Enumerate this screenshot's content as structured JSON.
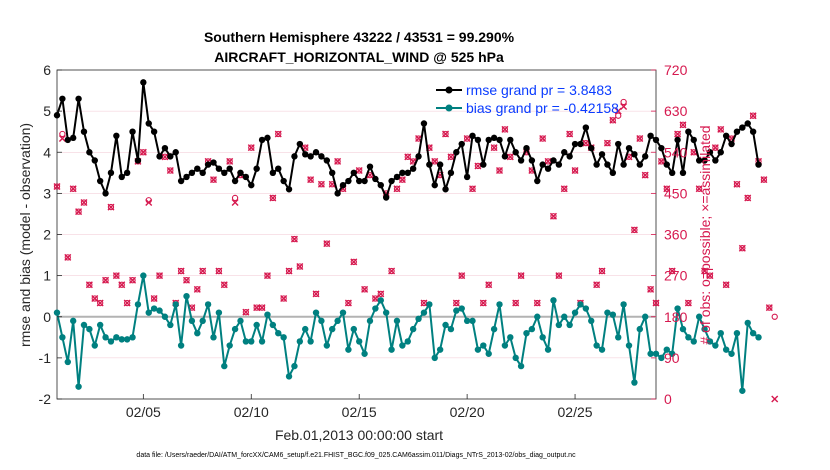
{
  "colors": {
    "rmse": "#000000",
    "bias": "#008080",
    "obs": "#d6194f",
    "zero_line": "#b3b3b3",
    "grid": "#f2c6d1",
    "legend_text": "#0a3cff"
  },
  "chart_data": {
    "type": "line",
    "title_line1": "Southern Hemisphere 43222 / 43531 = 99.290%",
    "title_line2": "AIRCRAFT_HORIZONTAL_WIND @ 525 hPa",
    "xlabel": "Feb.01,2013 00:00:00 start",
    "ylabel_left": "rmse and bias (model - observation)",
    "ylabel_right": "# of obs: o=possible; ×=assimilated",
    "footnote": "data file: /Users/raeder/DAI/ATM_forcXX/CAM6_setup/f.e21.FHIST_BGC.f09_025.CAM6assim.011/Diags_NTrS_2013-02/obs_diag_output.nc",
    "x_range_days": [
      1,
      28.75
    ],
    "x_ticks": [
      {
        "day": 5,
        "label": "02/05"
      },
      {
        "day": 10,
        "label": "02/10"
      },
      {
        "day": 15,
        "label": "02/15"
      },
      {
        "day": 20,
        "label": "02/20"
      },
      {
        "day": 25,
        "label": "02/25"
      }
    ],
    "ylim_left": [
      -2,
      6
    ],
    "yticks_left": [
      -2,
      -1,
      0,
      1,
      2,
      3,
      4,
      5,
      6
    ],
    "ylim_right": [
      0,
      720
    ],
    "yticks_right": [
      0,
      90,
      180,
      270,
      360,
      450,
      540,
      630,
      720
    ],
    "legend": [
      {
        "text": "rmse grand pr = 3.8483",
        "series": "rmse"
      },
      {
        "text": "bias grand pr = -0.42158",
        "series": "bias"
      }
    ],
    "x_start": 1,
    "x_step": 0.25,
    "series": [
      {
        "name": "rmse",
        "axis": "left",
        "values": [
          4.9,
          5.3,
          4.3,
          4.35,
          5.3,
          4.5,
          4.0,
          3.8,
          3.3,
          3.0,
          3.5,
          4.4,
          3.4,
          3.5,
          4.5,
          3.8,
          5.7,
          4.7,
          4.5,
          3.9,
          4.1,
          3.9,
          4.0,
          3.3,
          3.4,
          3.5,
          3.6,
          3.5,
          3.7,
          3.75,
          3.6,
          3.5,
          3.6,
          3.3,
          3.5,
          3.4,
          3.2,
          3.6,
          4.3,
          4.35,
          3.5,
          3.6,
          3.3,
          3.1,
          3.9,
          4.2,
          3.95,
          3.9,
          4.0,
          3.9,
          3.8,
          3.5,
          3.0,
          3.2,
          3.3,
          3.5,
          3.3,
          3.3,
          3.65,
          3.35,
          3.2,
          2.9,
          3.3,
          3.4,
          3.5,
          3.5,
          3.6,
          3.9,
          4.7,
          3.7,
          3.2,
          3.7,
          3.1,
          3.5,
          4.0,
          4.2,
          3.4,
          4.4,
          4.3,
          3.7,
          4.3,
          4.35,
          4.3,
          3.9,
          4.3,
          4.0,
          3.8,
          4.1,
          3.8,
          3.3,
          3.7,
          3.6,
          3.8,
          3.7,
          4.0,
          3.9,
          4.2,
          4.2,
          4.6,
          4.1,
          3.7,
          3.95,
          3.7,
          3.5,
          4.2,
          3.7,
          4.1,
          3.95,
          3.7,
          3.9,
          4.4,
          4.3,
          4.1,
          3.7,
          3.5,
          4.3,
          3.5,
          4.5,
          4.3,
          3.8,
          3.8,
          4.0,
          3.8,
          4.0,
          4.4,
          4.2,
          4.5,
          4.6,
          4.7,
          4.5,
          3.7
        ]
      },
      {
        "name": "bias",
        "axis": "left",
        "values": [
          0.1,
          -0.5,
          -1.1,
          -0.1,
          -1.7,
          -0.2,
          -0.3,
          -0.7,
          -0.2,
          -0.5,
          -0.6,
          -0.5,
          -0.55,
          -0.55,
          -0.5,
          0.3,
          1.0,
          0.1,
          0.2,
          0.15,
          0.0,
          -0.2,
          0.3,
          -0.7,
          0.5,
          -0.1,
          -0.4,
          -0.1,
          0.3,
          -0.5,
          0.1,
          -1.2,
          -0.7,
          -0.3,
          -0.1,
          -0.6,
          -0.6,
          -0.2,
          -0.6,
          0.05,
          -0.2,
          -0.4,
          -0.5,
          -1.45,
          -1.2,
          -0.6,
          -0.3,
          -0.6,
          0.1,
          -0.1,
          -0.7,
          -0.3,
          -0.1,
          0.1,
          -0.8,
          -0.3,
          -0.6,
          -0.9,
          -0.1,
          0.2,
          0.4,
          0.1,
          -0.8,
          -0.1,
          -0.7,
          -0.6,
          -0.3,
          -0.05,
          0.1,
          0.3,
          -1.0,
          -0.8,
          -0.2,
          -0.3,
          0.15,
          0.2,
          -0.1,
          -0.1,
          -0.8,
          -0.7,
          -0.9,
          -0.3,
          0.3,
          -0.7,
          -0.5,
          -1.0,
          -1.2,
          -0.4,
          -0.3,
          0.0,
          -0.5,
          -0.8,
          0.4,
          -0.2,
          0.0,
          -0.2,
          0.1,
          0.3,
          0.2,
          -0.1,
          -0.7,
          -0.8,
          0.1,
          0.05,
          -0.5,
          0.3,
          -0.7,
          -1.6,
          -0.3,
          0.0,
          -0.9,
          -0.9,
          -1.0,
          -0.8,
          -0.9,
          0.2,
          -0.3,
          -0.5,
          -0.6,
          0.0,
          -0.3,
          -0.6,
          -0.7,
          -0.4,
          -0.8,
          -0.9,
          -0.4,
          -1.8,
          -0.15,
          -0.4,
          -0.5
        ]
      },
      {
        "name": "obs_possible",
        "axis": "right",
        "values": [
          465,
          580,
          310,
          460,
          410,
          430,
          250,
          220,
          210,
          260,
          420,
          270,
          250,
          210,
          260,
          520,
          540,
          435,
          220,
          270,
          530,
          500,
          210,
          280,
          260,
          200,
          240,
          280,
          520,
          480,
          280,
          250,
          520,
          440,
          490,
          190,
          550,
          200,
          200,
          270,
          440,
          580,
          220,
          280,
          350,
          290,
          550,
          480,
          230,
          470,
          340,
          470,
          520,
          460,
          210,
          300,
          500,
          240,
          490,
          220,
          230,
          450,
          280,
          460,
          480,
          530,
          520,
          570,
          210,
          550,
          520,
          490,
          580,
          530,
          210,
          270,
          570,
          460,
          510,
          210,
          250,
          550,
          500,
          590,
          530,
          210,
          270,
          540,
          500,
          210,
          570,
          520,
          400,
          270,
          460,
          580,
          500,
          210,
          560,
          550,
          250,
          280,
          560,
          610,
          620,
          650,
          530,
          370,
          570,
          490,
          240,
          210,
          520,
          460,
          280,
          580,
          600,
          210,
          540,
          460,
          280,
          270,
          550,
          590,
          250,
          570,
          470,
          330,
          440,
          620,
          520,
          480,
          200,
          180
        ]
      },
      {
        "name": "obs_assimilated",
        "axis": "right",
        "values": [
          465,
          570,
          310,
          460,
          410,
          430,
          250,
          220,
          210,
          260,
          420,
          270,
          250,
          210,
          260,
          520,
          540,
          430,
          220,
          270,
          530,
          500,
          210,
          280,
          260,
          200,
          240,
          280,
          520,
          480,
          280,
          250,
          520,
          430,
          490,
          190,
          550,
          200,
          200,
          270,
          440,
          580,
          220,
          280,
          350,
          290,
          550,
          480,
          230,
          470,
          340,
          470,
          520,
          460,
          210,
          300,
          500,
          240,
          490,
          220,
          230,
          450,
          280,
          460,
          480,
          530,
          520,
          570,
          210,
          550,
          520,
          490,
          580,
          530,
          210,
          270,
          570,
          460,
          510,
          210,
          250,
          550,
          500,
          590,
          530,
          210,
          270,
          540,
          500,
          210,
          570,
          520,
          400,
          270,
          460,
          580,
          500,
          210,
          560,
          550,
          250,
          280,
          560,
          610,
          630,
          640,
          530,
          370,
          570,
          490,
          240,
          210,
          520,
          460,
          280,
          580,
          600,
          210,
          540,
          460,
          280,
          270,
          550,
          590,
          250,
          570,
          470,
          330,
          440,
          620,
          520,
          480,
          200,
          0
        ]
      }
    ]
  }
}
